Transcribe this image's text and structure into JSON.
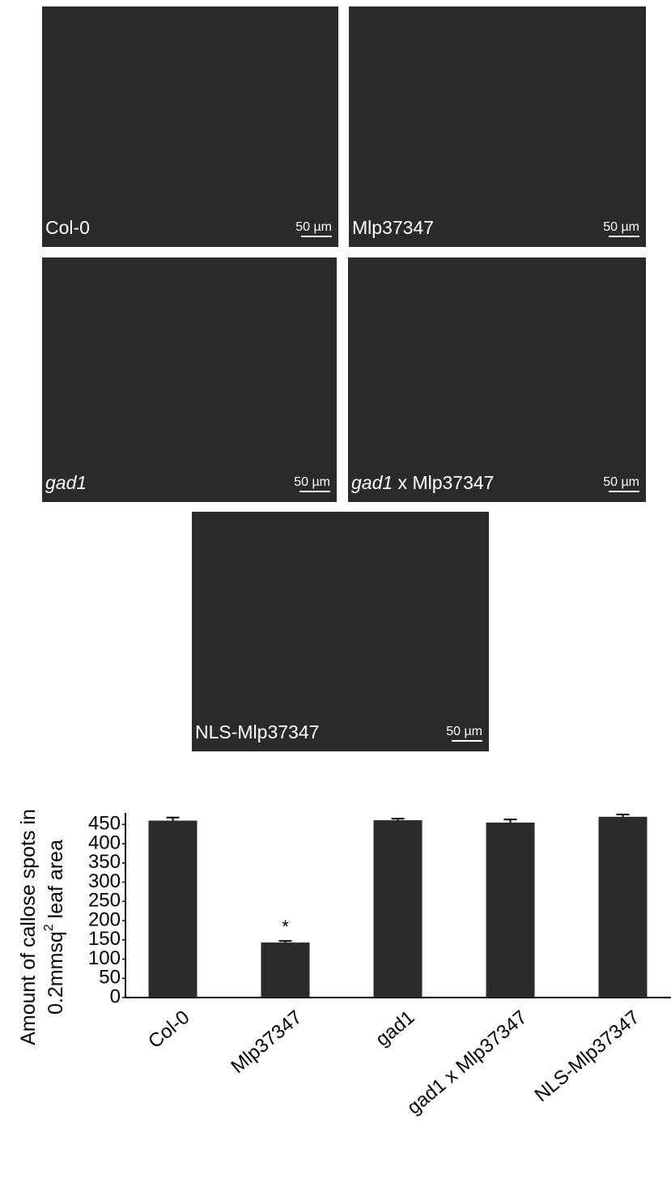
{
  "panels": [
    {
      "label": [
        {
          "text": "Col-0"
        }
      ],
      "scale_label": "50 µm"
    },
    {
      "label": [
        {
          "text": "Mlp37347"
        }
      ],
      "scale_label": "50 µm"
    },
    {
      "label": [
        {
          "text": "gad1",
          "italic": true
        }
      ],
      "scale_label": "50 µm"
    },
    {
      "label": [
        {
          "text": "gad1",
          "italic": true
        },
        {
          "text": " x Mlp37347"
        }
      ],
      "scale_label": "50 µm"
    },
    {
      "label": [
        {
          "text": "NLS-Mlp37347"
        }
      ],
      "scale_label": "50 µm"
    }
  ],
  "chart_data": {
    "type": "bar",
    "ylabel": {
      "line1": "Amount of callose spots in",
      "line2": "0.2mmsq",
      "sup": "2",
      "line2_end": " leaf area"
    },
    "categories": [
      "Col-0",
      "Mlp37347",
      "gad1",
      "gad1 x Mlp37347",
      "NLS-Mlp37347"
    ],
    "values": [
      460,
      143,
      461,
      455,
      470
    ],
    "errors": [
      8,
      4,
      4,
      8,
      6
    ],
    "annotations": [
      {
        "category": 1,
        "text": "*"
      }
    ],
    "color": "#2b2b2b",
    "ylim": [
      0,
      480
    ],
    "yticks": [
      0,
      50,
      100,
      150,
      200,
      250,
      300,
      350,
      400,
      450
    ]
  }
}
